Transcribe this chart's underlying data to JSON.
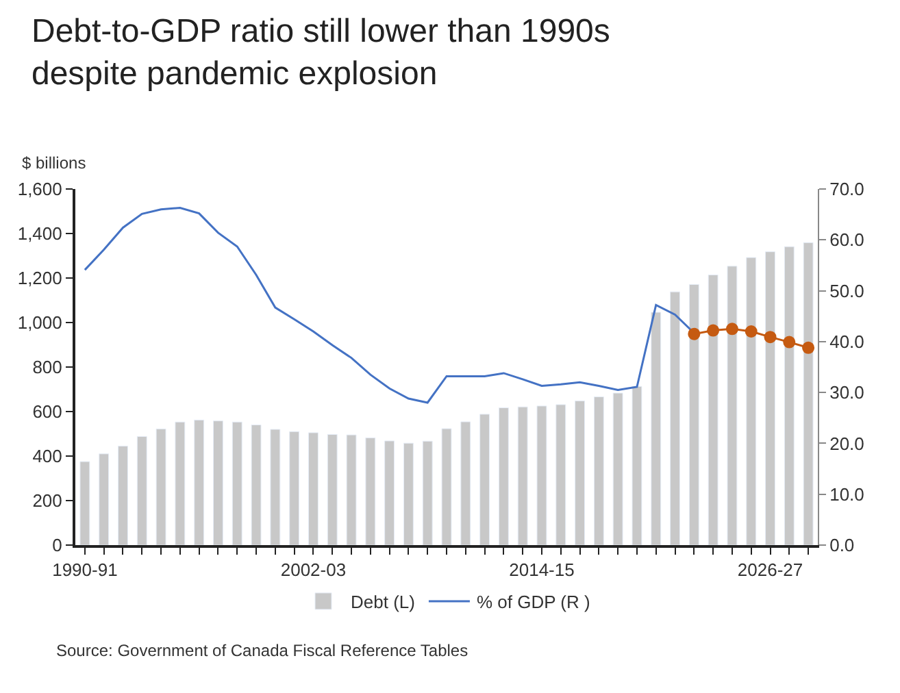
{
  "chart_data": {
    "type": "bar",
    "title": "Debt-to-GDP ratio still lower than 1990s despite pandemic explosion",
    "ylabel": "$ billions",
    "categories": [
      "1990-91",
      null,
      null,
      null,
      null,
      null,
      null,
      null,
      null,
      null,
      null,
      null,
      "2002-03",
      null,
      null,
      null,
      null,
      null,
      null,
      null,
      null,
      null,
      null,
      null,
      "2014-15",
      null,
      null,
      null,
      null,
      null,
      null,
      null,
      null,
      null,
      null,
      null,
      "2026-27",
      null,
      null
    ],
    "series": [
      {
        "name": "Debt (L)",
        "color": "#c8c8c8",
        "values": [
          375,
          410,
          445,
          488,
          522,
          553,
          562,
          558,
          553,
          540,
          520,
          510,
          505,
          497,
          495,
          482,
          468,
          458,
          467,
          523,
          554,
          588,
          617,
          621,
          625,
          631,
          648,
          666,
          683,
          713,
          1046,
          1138,
          1171,
          1214,
          1253,
          1292,
          1318,
          1341,
          1359
        ]
      },
      {
        "name": "% of GDP (R )",
        "type": "line",
        "axis": "y2",
        "color": "#4472c4",
        "marker": "none",
        "values": [
          54.1,
          58.1,
          62.4,
          65.1,
          66.0,
          66.3,
          65.2,
          61.4,
          58.7,
          53.1,
          46.7,
          44.4,
          42.0,
          39.3,
          36.8,
          33.5,
          30.8,
          28.8,
          28.0,
          33.2,
          33.2,
          33.2,
          33.8,
          32.6,
          31.3,
          31.6,
          32.0,
          31.3,
          30.5,
          31.1,
          47.2,
          45.3,
          41.7,
          null,
          null,
          null,
          null,
          null,
          null
        ]
      },
      {
        "type": "line",
        "axis": "y2",
        "color": "#c55a11",
        "marker": "circle",
        "values": [
          null,
          null,
          null,
          null,
          null,
          null,
          null,
          null,
          null,
          null,
          null,
          null,
          null,
          null,
          null,
          null,
          null,
          null,
          null,
          null,
          null,
          null,
          null,
          null,
          null,
          null,
          null,
          null,
          null,
          null,
          null,
          null,
          41.5,
          42.2,
          42.5,
          42.0,
          40.9,
          39.9,
          38.8
        ]
      }
    ],
    "ylim": [
      0,
      1600
    ],
    "yticks": [
      0,
      200,
      400,
      600,
      800,
      {
        "value": 1000,
        "label": "1,000"
      },
      {
        "value": 1200,
        "label": "1,200"
      },
      {
        "value": 1400,
        "label": "1,400"
      },
      {
        "value": 1600,
        "label": "1,600"
      }
    ],
    "y2lim": [
      0,
      70
    ],
    "y2ticks": [
      {
        "value": 0,
        "label": "0.0"
      },
      {
        "value": 10,
        "label": "10.0"
      },
      {
        "value": 20,
        "label": "20.0"
      },
      {
        "value": 30,
        "label": "30.0"
      },
      {
        "value": 40,
        "label": "40.0"
      },
      {
        "value": 50,
        "label": "50.0"
      },
      {
        "value": 60,
        "label": "60.0"
      },
      {
        "value": 70,
        "label": "70.0"
      }
    ],
    "legend": "bottom",
    "annotations": [
      "Source: Government of Canada Fiscal Reference Tables"
    ]
  }
}
